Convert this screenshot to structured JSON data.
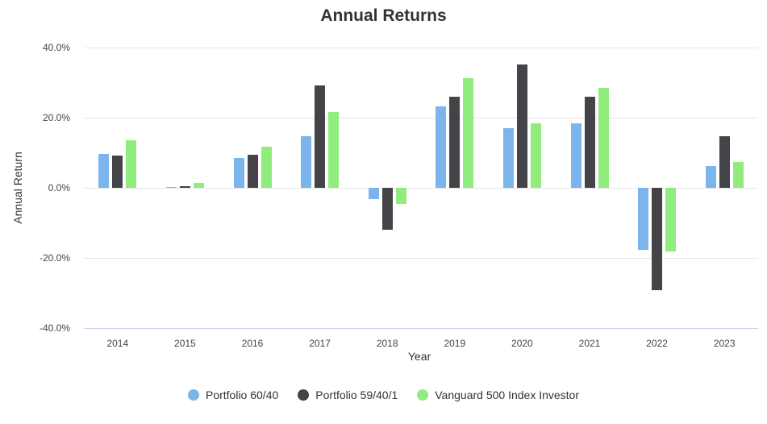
{
  "chart_data": {
    "type": "bar",
    "title": "Annual Returns",
    "xlabel": "Year",
    "ylabel": "Annual Return",
    "ylim": [
      -40,
      40
    ],
    "yticks": [
      "40.0%",
      "20.0%",
      "0.0%",
      "-20.0%",
      "-40.0%"
    ],
    "ytick_values": [
      40,
      20,
      0,
      -20,
      -40
    ],
    "grid": true,
    "legend_position": "bottom",
    "categories": [
      "2014",
      "2015",
      "2016",
      "2017",
      "2018",
      "2019",
      "2020",
      "2021",
      "2022",
      "2023"
    ],
    "series": [
      {
        "name": "Portfolio 60/40",
        "color": "#7cb5ec",
        "values": [
          9.7,
          0.3,
          8.5,
          14.6,
          -3.3,
          23.3,
          16.9,
          18.4,
          -17.8,
          6.2
        ]
      },
      {
        "name": "Portfolio 59/40/1",
        "color": "#434348",
        "values": [
          9.1,
          0.4,
          9.4,
          29.2,
          -11.9,
          26.0,
          35.2,
          26.0,
          -29.3,
          14.6
        ]
      },
      {
        "name": "Vanguard 500 Index Investor",
        "color": "#90ed7d",
        "values": [
          13.5,
          1.3,
          11.8,
          21.7,
          -4.5,
          31.3,
          18.3,
          28.5,
          -18.2,
          7.4
        ]
      }
    ]
  }
}
